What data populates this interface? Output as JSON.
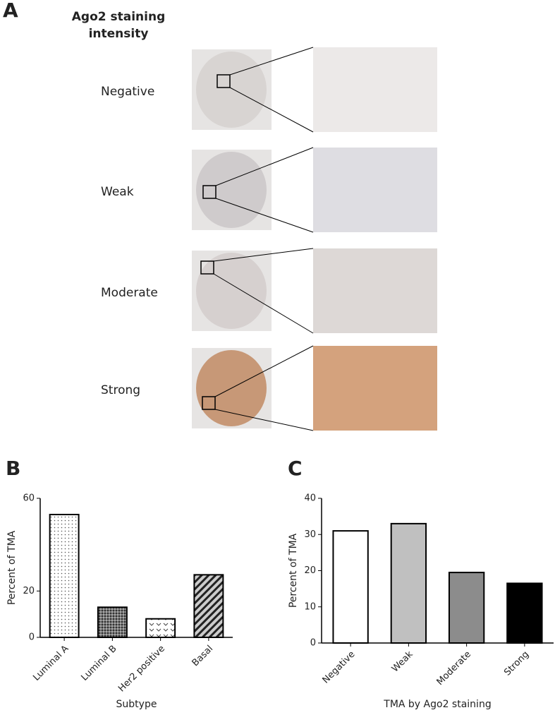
{
  "panel_a": {
    "letter": "A",
    "heading": [
      "Ago2 staining",
      "intensity"
    ],
    "rows": [
      "Negative",
      "Weak",
      "Moderate",
      "Strong"
    ]
  },
  "chart_data": [
    {
      "type": "bar",
      "letter": "B",
      "categories": [
        "Luminal A",
        "Luminal B",
        "Her2 positive",
        "Basal"
      ],
      "values": [
        53,
        13,
        8,
        27
      ],
      "patterns": [
        "dots",
        "crosshatch",
        "chevron",
        "diagonal"
      ],
      "xlabel": "Subtype",
      "ylabel": "Percent of TMA",
      "ylim": [
        0,
        60
      ],
      "yticks": [
        0,
        20,
        60
      ]
    },
    {
      "type": "bar",
      "letter": "C",
      "categories": [
        "Negative",
        "Weak",
        "Moderate",
        "Strong"
      ],
      "values": [
        31,
        33,
        19.5,
        16.5
      ],
      "colors": [
        "#ffffff",
        "#c0c0c0",
        "#8c8c8c",
        "#000000"
      ],
      "xlabel": "TMA by Ago2 staining",
      "ylabel": "Percent of TMA",
      "ylim": [
        0,
        40
      ],
      "yticks": [
        0,
        10,
        20,
        30,
        40
      ]
    }
  ]
}
